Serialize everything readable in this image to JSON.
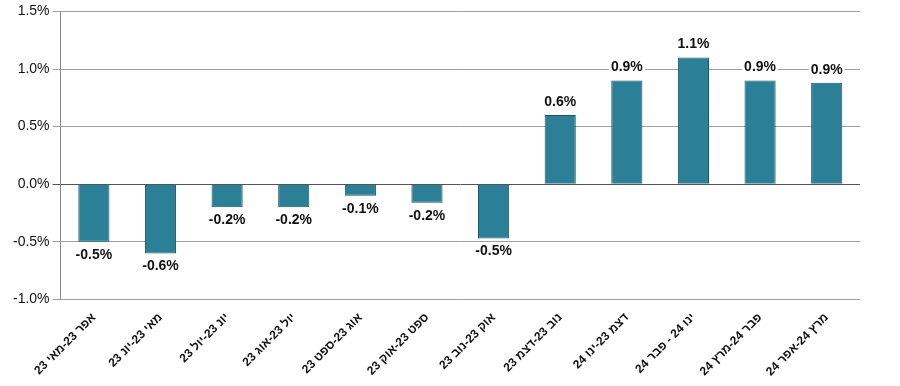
{
  "chart_data": {
    "type": "bar",
    "categories": [
      "אפר 23-מאי 23",
      "מאי 23-יונ 23",
      "יונ 23-יול 23",
      "יול 23-אוג 23",
      "אוג 23-ספט 23",
      "ספט 23-אוק 23",
      "אוק 23-נוב 23",
      "נוב 23-דצמ 23",
      "דצמ 23-ינו 24",
      "ינו 24 - פבר 24",
      "פבר 24-מרץ 24",
      "מרץ 24-אפר 24"
    ],
    "values": [
      -0.5,
      -0.6,
      -0.2,
      -0.2,
      -0.1,
      -0.16,
      -0.47,
      0.6,
      0.9,
      1.1,
      0.9,
      0.88
    ],
    "value_labels": [
      "-0.5%",
      "-0.6%",
      "-0.2%",
      "-0.2%",
      "-0.1%",
      "-0.2%",
      "-0.5%",
      "0.6%",
      "0.9%",
      "1.1%",
      "0.9%",
      "0.9%"
    ],
    "color": "#2b7f96",
    "ylim": [
      -1,
      1.5
    ],
    "yticks": [
      {
        "value": -1,
        "label": "-1.0%"
      },
      {
        "value": -0.5,
        "label": "-0.5%"
      },
      {
        "value": 0,
        "label": "0.0%"
      },
      {
        "value": 0.5,
        "label": "0.5%"
      },
      {
        "value": 1,
        "label": "1.0%"
      },
      {
        "value": 1.5,
        "label": "1.5%"
      }
    ],
    "grid": true,
    "data_labels": true
  }
}
